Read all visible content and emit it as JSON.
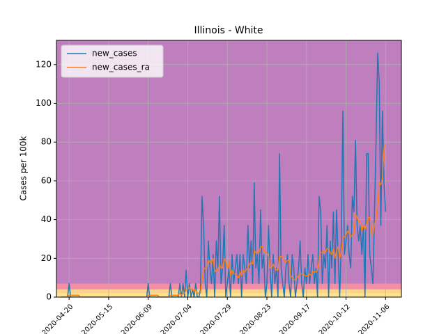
{
  "chart_data": {
    "type": "line",
    "title": "Illinois - White",
    "ylabel": "Cases per 100k",
    "x": [
      "2020-04-15",
      "2020-04-16",
      "2020-04-17",
      "2020-04-18",
      "2020-04-19",
      "2020-04-20",
      "2020-04-21",
      "2020-04-22",
      "2020-04-23",
      "2020-04-24",
      "2020-04-25",
      "2020-04-26",
      "2020-04-27",
      "2020-04-28",
      "2020-04-29",
      "2020-04-30",
      "2020-05-01",
      "2020-05-02",
      "2020-05-03",
      "2020-05-04",
      "2020-05-05",
      "2020-05-06",
      "2020-05-07",
      "2020-05-08",
      "2020-05-09",
      "2020-05-10",
      "2020-05-11",
      "2020-05-12",
      "2020-05-13",
      "2020-05-14",
      "2020-05-15",
      "2020-05-16",
      "2020-05-17",
      "2020-05-18",
      "2020-05-19",
      "2020-05-20",
      "2020-05-21",
      "2020-05-22",
      "2020-05-23",
      "2020-05-24",
      "2020-05-25",
      "2020-05-26",
      "2020-05-27",
      "2020-05-28",
      "2020-05-29",
      "2020-05-30",
      "2020-05-31",
      "2020-06-01",
      "2020-06-02",
      "2020-06-03",
      "2020-06-04",
      "2020-06-05",
      "2020-06-06",
      "2020-06-07",
      "2020-06-08",
      "2020-06-09",
      "2020-06-10",
      "2020-06-11",
      "2020-06-12",
      "2020-06-13",
      "2020-06-14",
      "2020-06-15",
      "2020-06-16",
      "2020-06-17",
      "2020-06-18",
      "2020-06-19",
      "2020-06-20",
      "2020-06-21",
      "2020-06-22",
      "2020-06-23",
      "2020-06-24",
      "2020-06-25",
      "2020-06-26",
      "2020-06-27",
      "2020-06-28",
      "2020-06-29",
      "2020-06-30",
      "2020-07-01",
      "2020-07-02",
      "2020-07-03",
      "2020-07-04",
      "2020-07-05",
      "2020-07-06",
      "2020-07-07",
      "2020-07-08",
      "2020-07-09",
      "2020-07-10",
      "2020-07-11",
      "2020-07-12",
      "2020-07-13",
      "2020-07-14",
      "2020-07-15",
      "2020-07-16",
      "2020-07-17",
      "2020-07-18",
      "2020-07-19",
      "2020-07-20",
      "2020-07-21",
      "2020-07-22",
      "2020-07-23",
      "2020-07-24",
      "2020-07-25",
      "2020-07-26",
      "2020-07-27",
      "2020-07-28",
      "2020-07-29",
      "2020-07-30",
      "2020-07-31",
      "2020-08-01",
      "2020-08-02",
      "2020-08-03",
      "2020-08-04",
      "2020-08-05",
      "2020-08-06",
      "2020-08-07",
      "2020-08-08",
      "2020-08-09",
      "2020-08-10",
      "2020-08-11",
      "2020-08-12",
      "2020-08-13",
      "2020-08-14",
      "2020-08-15",
      "2020-08-16",
      "2020-08-17",
      "2020-08-18",
      "2020-08-19",
      "2020-08-20",
      "2020-08-21",
      "2020-08-22",
      "2020-08-23",
      "2020-08-24",
      "2020-08-25",
      "2020-08-26",
      "2020-08-27",
      "2020-08-28",
      "2020-08-29",
      "2020-08-30",
      "2020-08-31",
      "2020-09-01",
      "2020-09-02",
      "2020-09-03",
      "2020-09-04",
      "2020-09-05",
      "2020-09-06",
      "2020-09-07",
      "2020-09-08",
      "2020-09-09",
      "2020-09-10",
      "2020-09-11",
      "2020-09-12",
      "2020-09-13",
      "2020-09-14",
      "2020-09-15",
      "2020-09-16",
      "2020-09-17",
      "2020-09-18",
      "2020-09-19",
      "2020-09-20",
      "2020-09-21",
      "2020-09-22",
      "2020-09-23",
      "2020-09-24",
      "2020-09-25",
      "2020-09-26",
      "2020-09-27",
      "2020-09-28",
      "2020-09-29",
      "2020-09-30",
      "2020-10-01",
      "2020-10-02",
      "2020-10-03",
      "2020-10-04",
      "2020-10-05",
      "2020-10-06",
      "2020-10-07",
      "2020-10-08",
      "2020-10-09",
      "2020-10-10",
      "2020-10-11",
      "2020-10-12",
      "2020-10-13",
      "2020-10-14",
      "2020-10-15",
      "2020-10-16",
      "2020-10-17",
      "2020-10-18",
      "2020-10-19",
      "2020-10-20",
      "2020-10-21",
      "2020-10-22",
      "2020-10-23",
      "2020-10-24",
      "2020-10-25",
      "2020-10-26",
      "2020-10-27",
      "2020-10-28",
      "2020-10-29",
      "2020-10-30",
      "2020-10-31",
      "2020-11-01",
      "2020-11-02",
      "2020-11-03",
      "2020-11-04",
      "2020-11-05",
      "2020-11-06"
    ],
    "series": [
      {
        "name": "new_cases",
        "color": "#1f77b4",
        "values": [
          0,
          0,
          0,
          0,
          0,
          7,
          0,
          0,
          0,
          0,
          0,
          0,
          0,
          0,
          0,
          0,
          0,
          0,
          0,
          0,
          0,
          0,
          0,
          0,
          0,
          0,
          0,
          0,
          0,
          0,
          0,
          0,
          0,
          0,
          0,
          0,
          0,
          0,
          0,
          0,
          0,
          0,
          0,
          0,
          0,
          0,
          0,
          0,
          0,
          0,
          0,
          0,
          0,
          0,
          0,
          7,
          0,
          0,
          0,
          0,
          0,
          0,
          0,
          0,
          0,
          0,
          0,
          0,
          0,
          7,
          0,
          0,
          0,
          0,
          0,
          7,
          0,
          7,
          0,
          14,
          0,
          7,
          0,
          4,
          0,
          7,
          0,
          0,
          4,
          52,
          37,
          7,
          0,
          29,
          15,
          7,
          22,
          0,
          29,
          15,
          52,
          7,
          15,
          37,
          0,
          7,
          15,
          0,
          22,
          7,
          15,
          22,
          7,
          22,
          0,
          22,
          15,
          7,
          37,
          15,
          29,
          7,
          59,
          15,
          22,
          7,
          45,
          15,
          22,
          0,
          7,
          37,
          15,
          0,
          22,
          7,
          15,
          0,
          74,
          15,
          7,
          0,
          15,
          22,
          7,
          0,
          22,
          15,
          0,
          7,
          15,
          29,
          7,
          0,
          15,
          7,
          22,
          7,
          15,
          22,
          7,
          15,
          0,
          52,
          44,
          7,
          22,
          15,
          37,
          0,
          29,
          15,
          44,
          7,
          45,
          22,
          0,
          29,
          96,
          22,
          29,
          37,
          22,
          15,
          52,
          44,
          81,
          37,
          29,
          37,
          22,
          37,
          0,
          74,
          74,
          22,
          15,
          7,
          44,
          81,
          126,
          111,
          37,
          96,
          59,
          44
        ]
      },
      {
        "name": "new_cases_ra",
        "color": "#ff7f0e",
        "values": [
          0,
          0,
          0,
          0,
          0,
          1,
          1,
          1,
          1,
          1,
          1,
          1,
          0,
          0,
          0,
          0,
          0,
          0,
          0,
          0,
          0,
          0,
          0,
          0,
          0,
          0,
          0,
          0,
          0,
          0,
          0,
          0,
          0,
          0,
          0,
          0,
          0,
          0,
          0,
          0,
          0,
          0,
          0,
          0,
          0,
          0,
          0,
          0,
          0,
          0,
          0,
          0,
          0,
          0,
          0,
          1,
          1,
          1,
          1,
          1,
          1,
          1,
          0,
          0,
          0,
          0,
          0,
          0,
          0,
          1,
          1,
          1,
          1,
          1,
          1,
          2,
          1,
          2,
          2,
          4,
          4,
          5,
          4,
          4,
          3,
          4,
          2,
          2,
          2,
          9,
          14,
          15,
          15,
          19,
          18,
          18,
          20,
          13,
          14,
          14,
          17,
          15,
          15,
          20,
          18,
          15,
          18,
          11,
          14,
          12,
          12,
          11,
          10,
          13,
          11,
          14,
          13,
          14,
          15,
          17,
          18,
          17,
          24,
          23,
          23,
          23,
          26,
          26,
          24,
          23,
          23,
          21,
          15,
          15,
          17,
          15,
          14,
          14,
          21,
          21,
          20,
          19,
          18,
          19,
          19,
          11,
          10,
          9,
          9,
          10,
          11,
          12,
          12,
          12,
          11,
          11,
          11,
          12,
          11,
          13,
          13,
          13,
          14,
          20,
          23,
          23,
          24,
          23,
          25,
          25,
          23,
          22,
          25,
          20,
          24,
          26,
          20,
          23,
          31,
          31,
          32,
          34,
          33,
          31,
          32,
          33,
          43,
          41,
          39,
          39,
          34,
          37,
          35,
          38,
          41,
          41,
          33,
          32,
          38,
          40,
          48,
          59,
          58,
          61,
          77,
          79
        ]
      }
    ],
    "xlim": [
      "2020-04-12",
      "2020-11-16"
    ],
    "xticks": [
      "2020-04-20",
      "2020-05-15",
      "2020-06-09",
      "2020-07-04",
      "2020-07-29",
      "2020-08-23",
      "2020-09-17",
      "2020-10-12",
      "2020-11-06"
    ],
    "ylim": [
      0,
      132.5
    ],
    "yticks": [
      0,
      20,
      40,
      60,
      80,
      100,
      120
    ],
    "grid": true,
    "legend": "upper left",
    "bands": [
      {
        "from": 0,
        "to": 2,
        "color": "#fde58c"
      },
      {
        "from": 2,
        "to": 4,
        "color": "#fbd38e"
      },
      {
        "from": 4,
        "to": 7,
        "color": "#f38fa5"
      },
      {
        "from": 7,
        "to": 132.5,
        "color": "#bf7fbf"
      }
    ]
  }
}
